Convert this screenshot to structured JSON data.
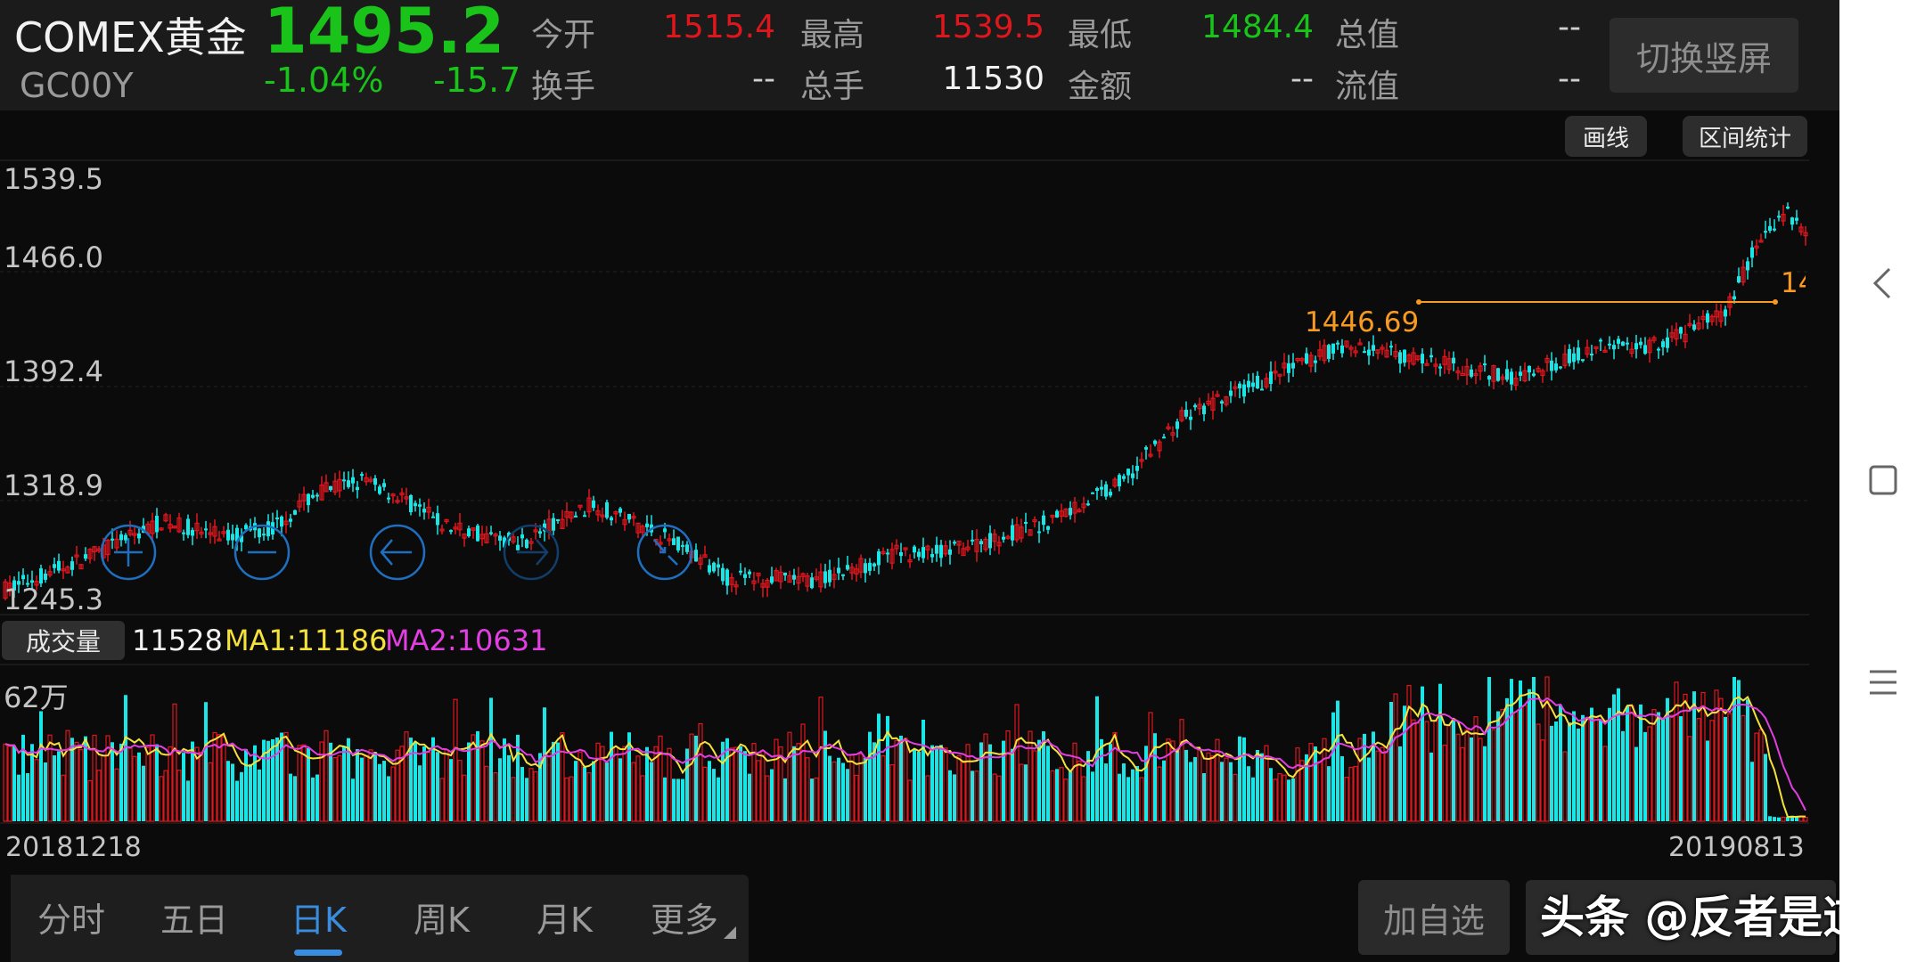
{
  "header": {
    "name": "COMEX黄金",
    "price": "1495.2",
    "code": "GC00Y",
    "change_pct": "-1.04%",
    "change": "-15.7",
    "stats": [
      {
        "label": "今开",
        "value": "1515.4",
        "color": "#e0161d"
      },
      {
        "label": "最高",
        "value": "1539.5",
        "color": "#e0161d"
      },
      {
        "label": "最低",
        "value": "1484.4",
        "color": "#19c319"
      },
      {
        "label": "总值",
        "value": "--",
        "color": "#cfcfcf"
      },
      {
        "label": "换手",
        "value": "--",
        "color": "#cfcfcf"
      },
      {
        "label": "总手",
        "value": "11530",
        "color": "#f2f2f2"
      },
      {
        "label": "金额",
        "value": "--",
        "color": "#cfcfcf"
      },
      {
        "label": "流值",
        "value": "--",
        "color": "#cfcfcf"
      }
    ],
    "switch_label": "切换竖屏"
  },
  "tools": {
    "draw": "画线",
    "range_stats": "区间统计"
  },
  "price_axis": [
    "1539.5",
    "1466.0",
    "1392.4",
    "1318.9",
    "1245.3"
  ],
  "price_marker": {
    "value": "1446.69",
    "right_label": "14"
  },
  "chart_nav_icons": [
    "zoom-in-icon",
    "zoom-out-icon",
    "arrow-left-icon",
    "arrow-right-icon",
    "shrink-icon"
  ],
  "volume": {
    "label": "成交量",
    "value": "11528",
    "ma1": "MA1:11186",
    "ma2": "MA2:10631",
    "max_label": "62万",
    "ma1_color": "#f5e13c",
    "ma2_color": "#e23ee2"
  },
  "dates": {
    "start": "20181218",
    "end": "20190813"
  },
  "period_tabs": [
    "分时",
    "五日",
    "日K",
    "周K",
    "月K",
    "更多"
  ],
  "active_tab": "日K",
  "actions": {
    "add_watch": "加自选"
  },
  "watermark": "头条 @反者是道",
  "colors": {
    "up": "#e0161d",
    "down": "#19e6e6",
    "marker": "#f79a1f"
  },
  "chart_data": {
    "type": "candlestick",
    "y_range": [
      1245.3,
      1539.5
    ],
    "x_range": [
      "20181218",
      "20190813"
    ],
    "marked_level": 1446.69,
    "volume_max": "62万"
  }
}
